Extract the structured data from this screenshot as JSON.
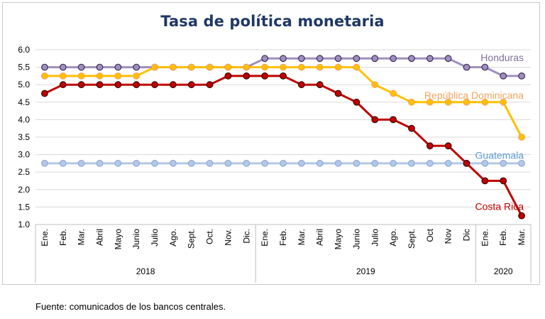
{
  "chart_data": {
    "type": "line",
    "title": "Tasa de política monetaria",
    "ylim": [
      1.0,
      6.0
    ],
    "yticks": [
      "6.0",
      "5.5",
      "5.0",
      "4.5",
      "4.0",
      "3.5",
      "3.0",
      "2.5",
      "2.0",
      "1.5",
      "1.0"
    ],
    "grid": true,
    "months": [
      "Ene.",
      "Feb.",
      "Mar.",
      "Abril",
      "Mayo",
      "Junio",
      "Julio",
      "Ago.",
      "Sept.",
      "Oct.",
      "Nov.",
      "Dic.",
      "Ene.",
      "Feb.",
      "Mar.",
      "Abril",
      "Mayo",
      "Junio",
      "Julio",
      "Ago.",
      "Sept.",
      "Oct",
      "Nov",
      "Dic",
      "Ene.",
      "Feb.",
      "Mar."
    ],
    "years": [
      {
        "label": "2018",
        "span": 12
      },
      {
        "label": "2019",
        "span": 12
      },
      {
        "label": "2020",
        "span": 3
      }
    ],
    "series": [
      {
        "name": "Honduras",
        "color": "#9e8fbe",
        "marker_edge": "#3d2e5a",
        "values": [
          5.5,
          5.5,
          5.5,
          5.5,
          5.5,
          5.5,
          5.5,
          5.5,
          5.5,
          5.5,
          5.5,
          5.5,
          5.75,
          5.75,
          5.75,
          5.75,
          5.75,
          5.75,
          5.75,
          5.75,
          5.75,
          5.75,
          5.75,
          5.5,
          5.5,
          5.25,
          5.25
        ]
      },
      {
        "name": "República Dominicana",
        "color": "#ffc000",
        "marker_edge": "#f4a460",
        "values": [
          5.25,
          5.25,
          5.25,
          5.25,
          5.25,
          5.25,
          5.5,
          5.5,
          5.5,
          5.5,
          5.5,
          5.5,
          5.5,
          5.5,
          5.5,
          5.5,
          5.5,
          5.5,
          5.0,
          4.75,
          4.5,
          4.5,
          4.5,
          4.5,
          4.5,
          4.5,
          3.5
        ]
      },
      {
        "name": "Guatemala",
        "color": "#b4c7e7",
        "marker_edge": "#8faadc",
        "values": [
          2.75,
          2.75,
          2.75,
          2.75,
          2.75,
          2.75,
          2.75,
          2.75,
          2.75,
          2.75,
          2.75,
          2.75,
          2.75,
          2.75,
          2.75,
          2.75,
          2.75,
          2.75,
          2.75,
          2.75,
          2.75,
          2.75,
          2.75,
          2.75,
          2.75,
          2.75,
          2.75
        ]
      },
      {
        "name": "Costa Rica",
        "color": "#c00000",
        "marker_edge": "#3b0000",
        "values": [
          4.75,
          5.0,
          5.0,
          5.0,
          5.0,
          5.0,
          5.0,
          5.0,
          5.0,
          5.0,
          5.25,
          5.25,
          5.25,
          5.25,
          5.0,
          5.0,
          4.75,
          4.5,
          4.0,
          4.0,
          3.75,
          3.25,
          3.25,
          2.75,
          2.25,
          2.25,
          1.25
        ]
      }
    ],
    "legend_labels": [
      {
        "series": "Honduras",
        "color": "#7f6f9f",
        "y": 5.78
      },
      {
        "series": "República Dominicana",
        "color": "#f4a460",
        "y": 4.7
      },
      {
        "series": "Guatemala",
        "color": "#5b9bd5",
        "y": 2.98
      },
      {
        "series": "Costa Rica",
        "color": "#c00000",
        "y": 1.52
      }
    ]
  },
  "source": "Fuente: comunicados de los bancos centrales."
}
